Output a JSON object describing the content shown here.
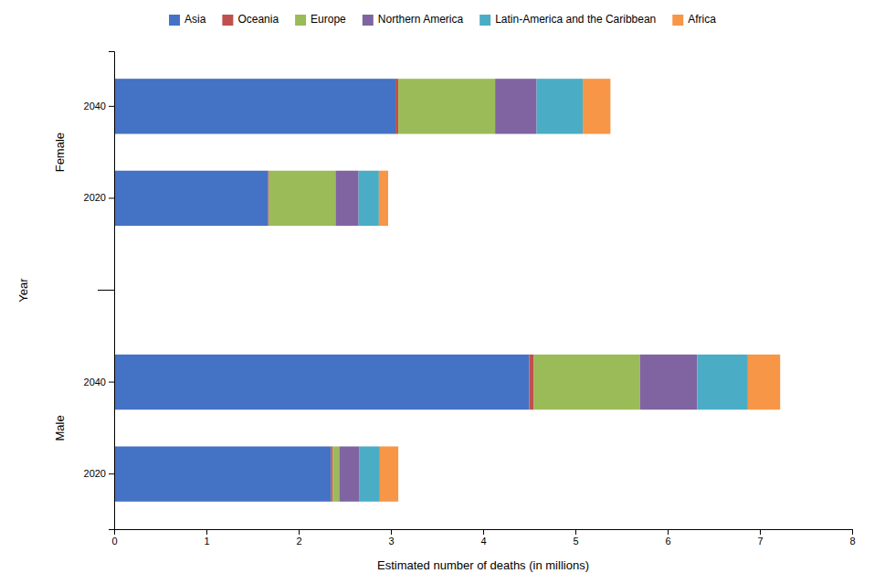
{
  "chart_data": {
    "type": "bar",
    "orientation": "horizontal",
    "stacked": true,
    "xlabel": "Estimated number of deaths (in millions)",
    "ylabel": "Year",
    "categories": [
      "2020",
      "2040",
      "2020",
      "2040"
    ],
    "groups": [
      "Male",
      "Female"
    ],
    "series": [
      {
        "name": "Asia",
        "color": "#4472C4",
        "values": [
          2.35,
          4.5,
          1.67,
          3.05
        ]
      },
      {
        "name": "Oceania",
        "color": "#C0504D",
        "values": [
          0.02,
          0.05,
          0.01,
          0.03
        ]
      },
      {
        "name": "Europe",
        "color": "#9BBB59",
        "values": [
          0.07,
          1.15,
          0.72,
          1.05
        ]
      },
      {
        "name": "Northern America",
        "color": "#8064A2",
        "values": [
          0.22,
          0.62,
          0.25,
          0.45
        ]
      },
      {
        "name": "Latin-America and the Caribbean",
        "color": "#4BACC6",
        "values": [
          0.22,
          0.55,
          0.22,
          0.5
        ]
      },
      {
        "name": "Africa",
        "color": "#F79646",
        "values": [
          0.2,
          0.35,
          0.1,
          0.3
        ]
      }
    ],
    "xlim": [
      0,
      8
    ],
    "xticks": [
      0,
      1,
      2,
      3,
      4,
      5,
      6,
      7,
      8
    ],
    "grid": false,
    "legend": "top"
  }
}
